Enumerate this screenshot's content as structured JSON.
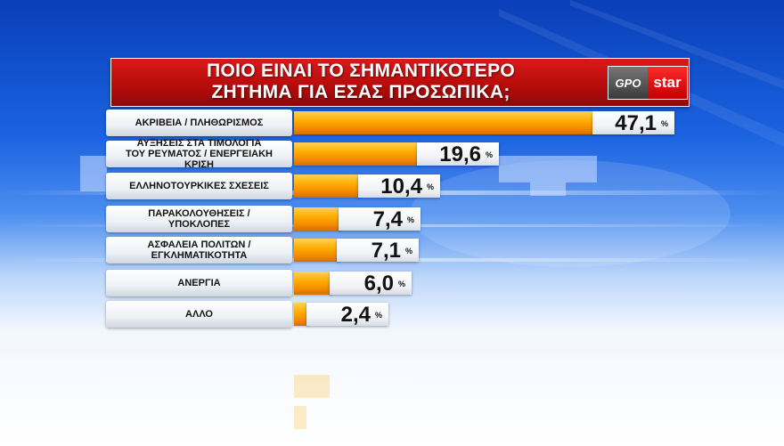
{
  "title": {
    "line1": "ΠΟΙΟ ΕΙΝΑΙ ΤΟ ΣΗΜΑΝΤΙΚΟΤΕΡΟ",
    "line2": "ΖΗΤΗΜΑ ΓΙΑ ΕΣΑΣ ΠΡΟΣΩΠΙΚΑ;"
  },
  "logo": {
    "left": "GPO",
    "right": "star"
  },
  "percent_sign": "%",
  "colors": {
    "title_bg": "#c4101a",
    "bar": "#ffad00",
    "background_top": "#0a3fb8"
  },
  "chart_data": {
    "type": "bar",
    "orientation": "horizontal",
    "title": "ΠΟΙΟ ΕΙΝΑΙ ΤΟ ΣΗΜΑΝΤΙΚΟΤΕΡΟ ΖΗΤΗΜΑ ΓΙΑ ΕΣΑΣ ΠΡΟΣΩΠΙΚΑ;",
    "unit": "%",
    "categories": [
      [
        "ΑΚΡΙΒΕΙΑ / ΠΛΗΘΩΡΙΣΜΟΣ"
      ],
      [
        "ΑΥΞΗΣΕΙΣ ΣΤΑ ΤΙΜΟΛΟΓΙΑ",
        "ΤΟΥ ΡΕΥΜΑΤΟΣ / ΕΝΕΡΓΕΙΑΚΗ ΚΡΙΣΗ"
      ],
      [
        "ΕΛΛΗΝΟΤΟΥΡΚΙΚΕΣ ΣΧΕΣΕΙΣ"
      ],
      [
        "ΠΑΡΑΚΟΛΟΥΘΗΣΕΙΣ /",
        "ΥΠΟΚΛΟΠΕΣ"
      ],
      [
        "ΑΣΦΑΛΕΙΑ ΠΟΛΙΤΩΝ /",
        "ΕΓΚΛΗΜΑΤΙΚΟΤΗΤΑ"
      ],
      [
        "ΑΝΕΡΓΙΑ"
      ],
      [
        "ΑΛΛΟ"
      ]
    ],
    "values": [
      47.1,
      19.6,
      10.4,
      7.4,
      7.1,
      6.0,
      2.4
    ],
    "value_labels": [
      "47,1",
      "19,6",
      "10,4",
      "7,4",
      "7,1",
      "6,0",
      "2,4"
    ],
    "xlim": [
      0,
      47.1
    ]
  }
}
